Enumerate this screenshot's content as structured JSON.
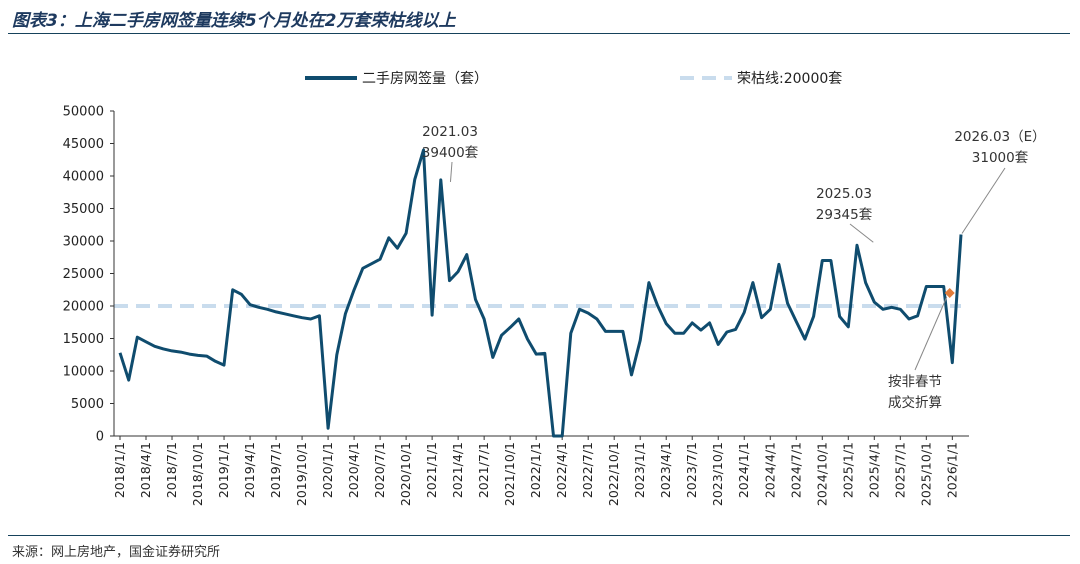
{
  "title": "图表3：上海二手房网签量连续5个月处在2万套荣枯线以上",
  "source": "来源：网上房地产，国金证券研究所",
  "colors": {
    "series": "#0f4c6e",
    "threshold": "#c9dced",
    "marker": "#e07b39",
    "axis": "#333333"
  },
  "chart_data": {
    "type": "line",
    "title": "图表3：上海二手房网签量连续5个月处在2万套荣枯线以上",
    "xlabel": "",
    "ylabel": "",
    "ylim": [
      0,
      50000
    ],
    "yticks": [
      0,
      5000,
      10000,
      15000,
      20000,
      25000,
      30000,
      35000,
      40000,
      45000,
      50000
    ],
    "x_tick_labels": [
      "2018/1/1",
      "2018/4/1",
      "2018/7/1",
      "2018/10/1",
      "2019/1/1",
      "2019/4/1",
      "2019/7/1",
      "2019/10/1",
      "2020/1/1",
      "2020/4/1",
      "2020/7/1",
      "2020/10/1",
      "2021/1/1",
      "2021/4/1",
      "2021/7/1",
      "2021/10/1",
      "2022/1/1",
      "2022/4/1",
      "2022/7/1",
      "2022/10/1",
      "2023/1/1",
      "2023/4/1",
      "2023/7/1",
      "2023/10/1",
      "2024/1/1",
      "2024/4/1",
      "2024/7/1",
      "2024/10/1",
      "2025/1/1",
      "2025/4/1",
      "2025/7/1",
      "2025/10/1",
      "2026/1/1"
    ],
    "series": [
      {
        "name": "二手房网签量（套）",
        "values": [
          12800,
          8600,
          15200,
          14500,
          13800,
          13400,
          13100,
          12900,
          12600,
          12400,
          12300,
          11500,
          10900,
          22500,
          21800,
          20200,
          19800,
          19500,
          19100,
          18800,
          18500,
          18200,
          18000,
          18500,
          1200,
          12500,
          18800,
          22500,
          25800,
          26500,
          27200,
          30500,
          28900,
          31200,
          39500,
          44000,
          18600,
          39400,
          23900,
          25300,
          27900,
          21000,
          18000,
          12100,
          15500,
          16700,
          18000,
          14900,
          12600,
          12700,
          0,
          0,
          15800,
          19500,
          18900,
          18000,
          16100,
          16100,
          16100,
          9400,
          14700,
          23600,
          20100,
          17300,
          15800,
          15800,
          17400,
          16300,
          17400,
          14100,
          16000,
          16400,
          19000,
          23600,
          18200,
          19500,
          26400,
          20400,
          17600,
          14900,
          18400,
          27000,
          27000,
          18400,
          16800,
          29345,
          23600,
          20600,
          19500,
          19800,
          19500,
          18000,
          18500,
          23000,
          23000,
          23000,
          11300,
          31000
        ]
      },
      {
        "name": "荣枯线:20000套",
        "value": 20000
      }
    ],
    "annotations": [
      {
        "label_line1": "2021.03",
        "label_line2": "39400套",
        "value": 39400
      },
      {
        "label_line1": "2025.03",
        "label_line2": "29345套",
        "value": 29345
      },
      {
        "label_line1": "2026.03（E）",
        "label_line2": "31000套",
        "value": 31000
      },
      {
        "label_line1": "按非春节",
        "label_line2": "成交折算",
        "value": 22000
      }
    ]
  }
}
